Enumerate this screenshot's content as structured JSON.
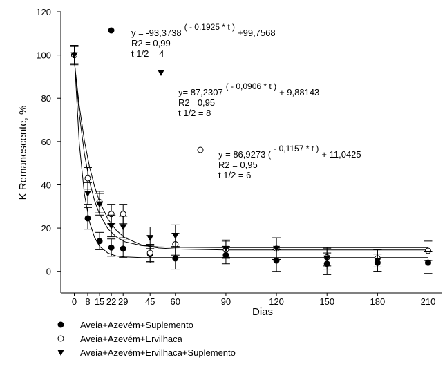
{
  "chart_data": {
    "type": "scatter",
    "x_label": "Dias",
    "y_label": "K Remanescente, %",
    "xlim": [
      -8,
      218
    ],
    "ylim": [
      -10,
      120
    ],
    "xticks": [
      0,
      8,
      15,
      22,
      29,
      45,
      60,
      90,
      120,
      150,
      180,
      210
    ],
    "yticks": [
      0,
      20,
      40,
      60,
      80,
      100,
      120
    ],
    "x": [
      0,
      8,
      15,
      22,
      29,
      45,
      60,
      90,
      120,
      150,
      180,
      210
    ],
    "series": [
      {
        "name": "Aveia+Azevém+Suplemento",
        "color": "#000000",
        "marker": "filled-circle",
        "values": [
          100,
          24.5,
          14,
          11,
          10.5,
          8,
          6,
          7.5,
          5,
          3.5,
          4,
          4
        ],
        "errors": [
          4,
          5,
          4,
          4,
          4,
          4,
          5,
          4,
          5,
          5,
          4,
          5
        ]
      },
      {
        "name": "Aveia+Azevém+Ervilhaca",
        "color": "#000000",
        "marker": "open-circle",
        "values": [
          100,
          43,
          32,
          26.5,
          26.5,
          8.5,
          12.5,
          10,
          10.5,
          6.5,
          6,
          9.5
        ],
        "errors": [
          4,
          5,
          5,
          4.5,
          4.5,
          4,
          5,
          4,
          5,
          4,
          4,
          4.5
        ]
      },
      {
        "name": "Aveia+Azevém+Ervilhaca+Suplemento",
        "color": "#000000",
        "marker": "filled-triangle",
        "values": [
          100,
          36,
          31,
          21,
          20.5,
          15.5,
          16.5,
          10.5,
          10.5,
          6,
          5,
          4
        ],
        "errors": [
          4.5,
          5,
          5,
          5,
          5,
          5,
          5,
          4,
          5,
          5,
          5,
          5
        ]
      }
    ],
    "fits": [
      {
        "x": [
          0,
          3,
          6,
          9,
          12,
          15,
          20,
          25,
          30,
          40,
          50,
          60,
          90,
          120,
          150,
          180,
          210
        ],
        "values": [
          99.8,
          58.8,
          35.8,
          22.9,
          15.7,
          11.6,
          8.4,
          7.1,
          6.7,
          6.4,
          6.4,
          6.4,
          6.4,
          6.4,
          6.4,
          6.4,
          6.4
        ]
      },
      {
        "x": [
          0,
          3,
          6,
          9,
          12,
          15,
          20,
          25,
          30,
          40,
          50,
          60,
          90,
          120,
          150,
          180,
          210
        ],
        "values": [
          98,
          72.5,
          54.5,
          41.7,
          32.7,
          26.4,
          19.6,
          15.9,
          13.7,
          11.9,
          11.3,
          11.1,
          11,
          11,
          11,
          11,
          11
        ]
      },
      {
        "x": [
          0,
          3,
          6,
          9,
          12,
          15,
          20,
          25,
          30,
          40,
          50,
          60,
          90,
          120,
          150,
          180,
          210
        ],
        "values": [
          97.1,
          76.4,
          60.5,
          48.5,
          39.3,
          32.3,
          24.1,
          18.9,
          15.6,
          12.2,
          10.8,
          10.3,
          9.9,
          9.9,
          9.9,
          9.9,
          9.9
        ]
      }
    ],
    "annotations": [
      {
        "equation": [
          "y = -93,3738",
          "( - 0,1925 * t )",
          "+99,7568"
        ],
        "r2": "R2 = 0,99",
        "half_life": "t 1/2 = 4"
      },
      {
        "equation": [
          "y= 87,2307",
          "( - 0,0906 * t )",
          "+ 9,88143"
        ],
        "r2": "R2 =0,95",
        "half_life": "t 1/2 = 8"
      },
      {
        "equation": [
          "y = 86,9273 (",
          "- 0,1157 * t )",
          "+ 11,0425"
        ],
        "r2": "R2 = 0,95",
        "half_life": "t 1/2 = 6"
      }
    ]
  }
}
